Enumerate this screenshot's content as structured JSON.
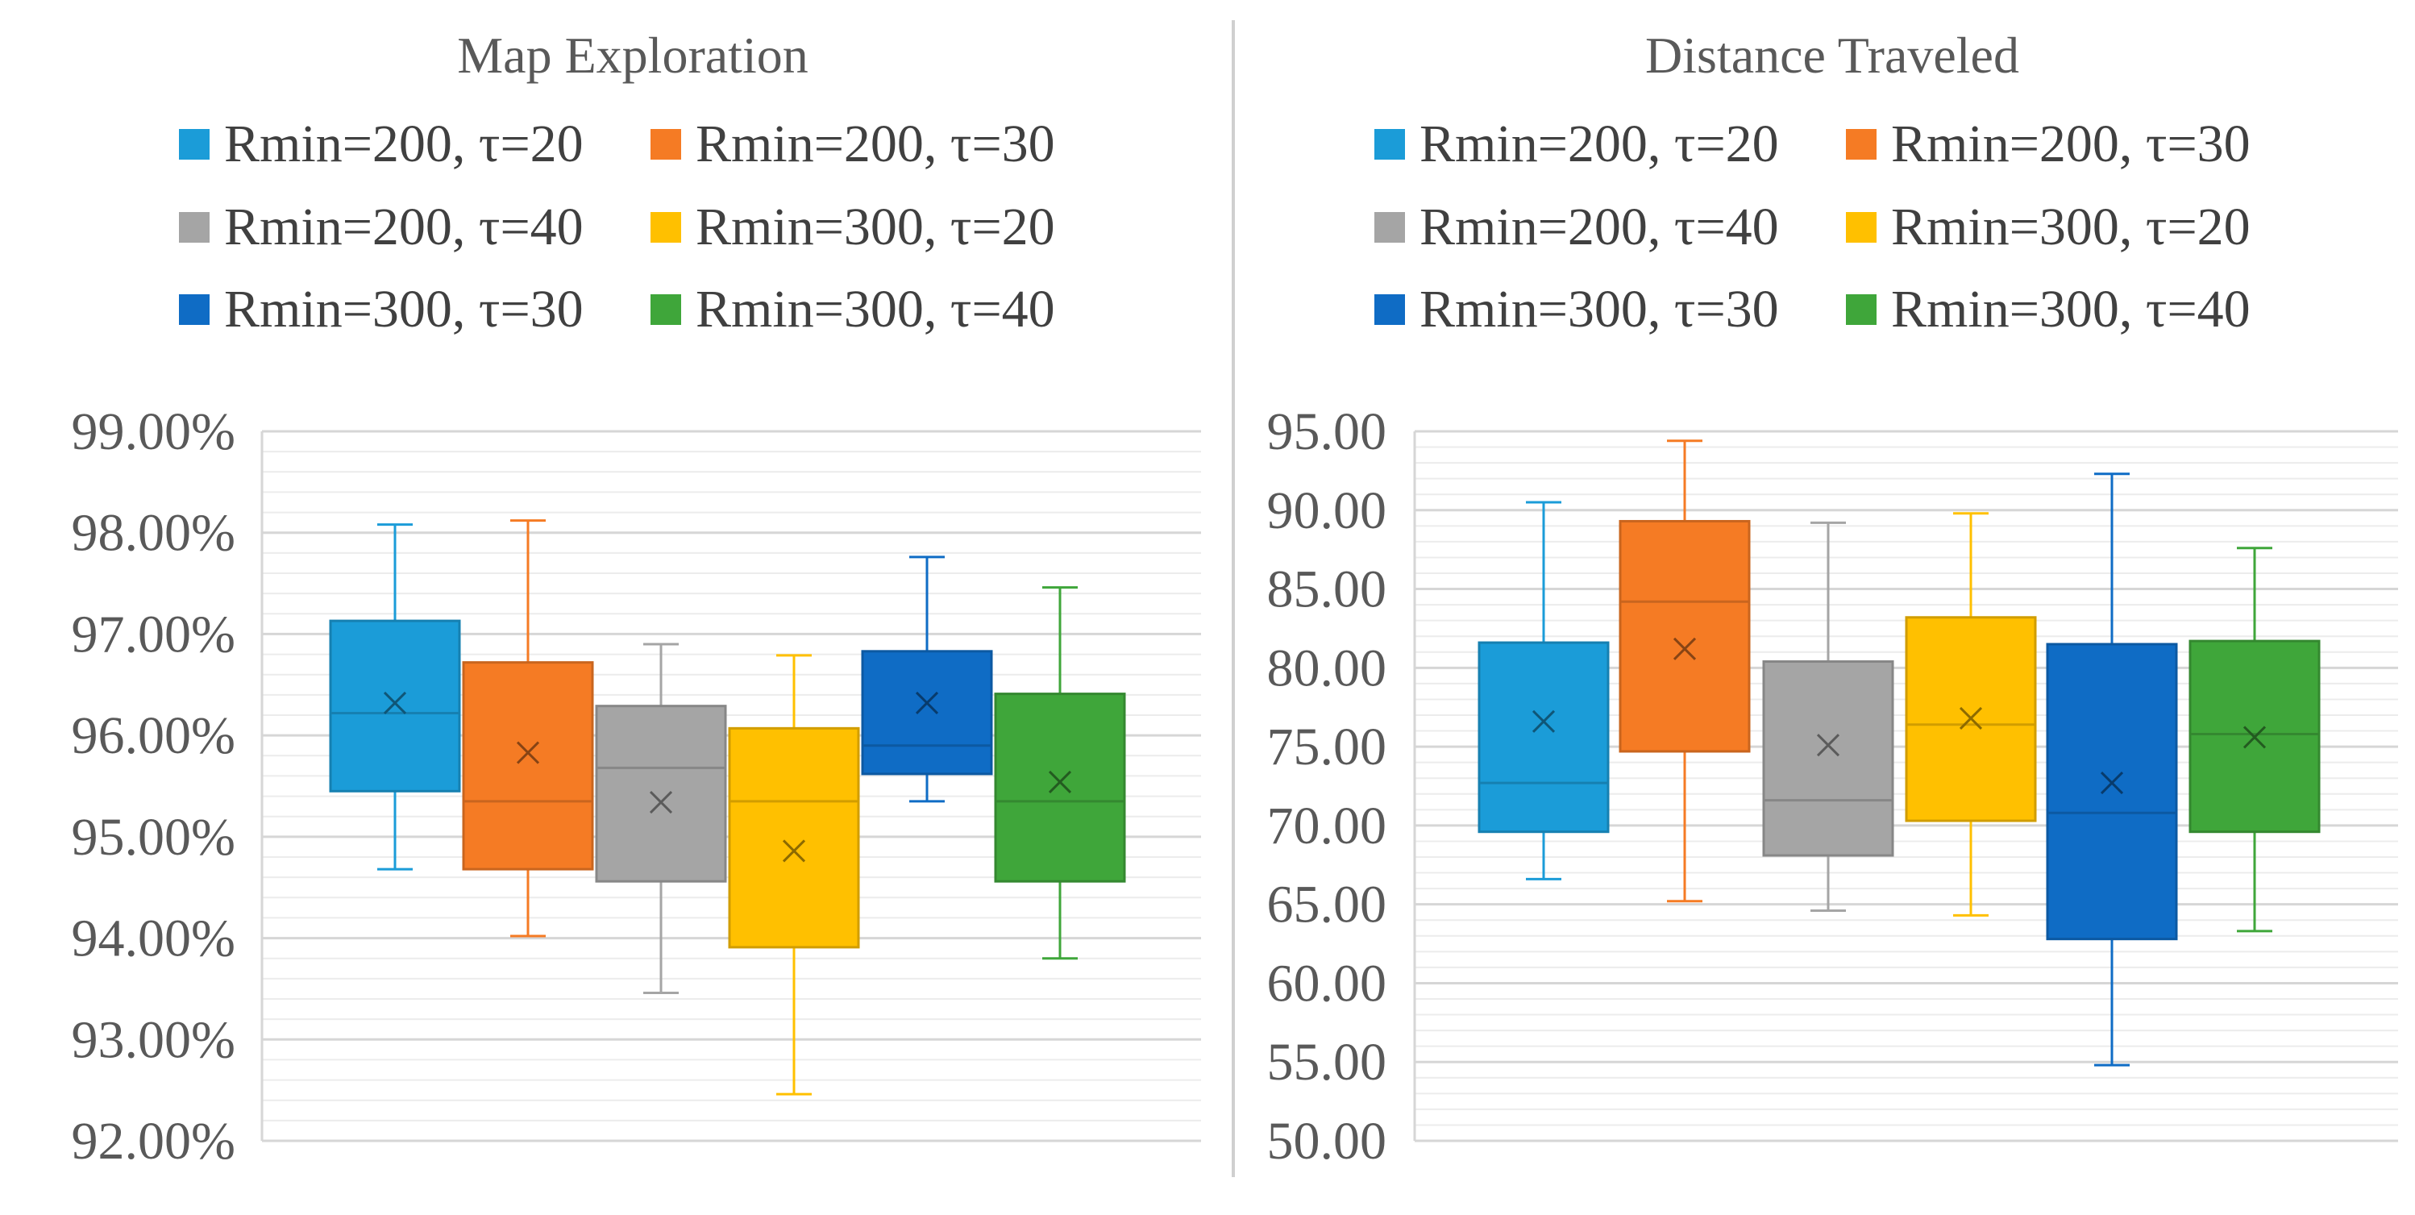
{
  "chart_data": [
    {
      "type": "box",
      "title": "Map Exploration",
      "xlabel": "",
      "ylabel": "",
      "ylim": [
        92,
        99
      ],
      "y_ticks": [
        "99.00%",
        "98.00%",
        "97.00%",
        "96.00%",
        "95.00%",
        "94.00%",
        "93.00%",
        "92.00%"
      ],
      "y_tick_values": [
        99,
        98,
        97,
        96,
        95,
        94,
        93,
        92
      ],
      "grid": true,
      "legend_position": "top",
      "legend": [
        "Rmin=200, τ=20",
        "Rmin=200, τ=30",
        "Rmin=200, τ=40",
        "Rmin=300, τ=20",
        "Rmin=300, τ=30",
        "Rmin=300, τ=40"
      ],
      "series": [
        {
          "name": "Rmin=200, τ=20",
          "color": "#1b9cd8",
          "min": 94.68,
          "q1": 95.45,
          "median": 96.22,
          "q3": 97.13,
          "max": 98.08,
          "mean": 96.32
        },
        {
          "name": "Rmin=200, τ=30",
          "color": "#f57b24",
          "min": 94.02,
          "q1": 94.68,
          "median": 95.35,
          "q3": 96.72,
          "max": 98.12,
          "mean": 95.83
        },
        {
          "name": "Rmin=200, τ=40",
          "color": "#a5a5a5",
          "min": 93.46,
          "q1": 94.56,
          "median": 95.68,
          "q3": 96.29,
          "max": 96.9,
          "mean": 95.34
        },
        {
          "name": "Rmin=300, τ=20",
          "color": "#ffc000",
          "min": 92.46,
          "q1": 93.91,
          "median": 95.35,
          "q3": 96.07,
          "max": 96.79,
          "mean": 94.86
        },
        {
          "name": "Rmin=300, τ=30",
          "color": "#0f6cc5",
          "min": 95.35,
          "q1": 95.62,
          "median": 95.9,
          "q3": 96.83,
          "max": 97.76,
          "mean": 96.32
        },
        {
          "name": "Rmin=300, τ=40",
          "color": "#3fa63a",
          "min": 93.8,
          "q1": 94.56,
          "median": 95.35,
          "q3": 96.41,
          "max": 97.46,
          "mean": 95.54
        }
      ]
    },
    {
      "type": "box",
      "title": "Distance Traveled",
      "xlabel": "",
      "ylabel": "",
      "ylim": [
        50,
        95
      ],
      "y_ticks": [
        "95.00",
        "90.00",
        "85.00",
        "80.00",
        "75.00",
        "70.00",
        "65.00",
        "60.00",
        "55.00",
        "50.00"
      ],
      "y_tick_values": [
        95,
        90,
        85,
        80,
        75,
        70,
        65,
        60,
        55,
        50
      ],
      "grid": true,
      "legend_position": "top",
      "legend": [
        "Rmin=200, τ=20",
        "Rmin=200, τ=30",
        "Rmin=200, τ=40",
        "Rmin=300, τ=20",
        "Rmin=300, τ=30",
        "Rmin=300, τ=40"
      ],
      "series": [
        {
          "name": "Rmin=200, τ=20",
          "color": "#1b9cd8",
          "min": 66.6,
          "q1": 69.6,
          "median": 72.7,
          "q3": 81.6,
          "max": 90.5,
          "mean": 76.6
        },
        {
          "name": "Rmin=200, τ=30",
          "color": "#f57b24",
          "min": 65.2,
          "q1": 74.7,
          "median": 84.2,
          "q3": 89.3,
          "max": 94.4,
          "mean": 81.2
        },
        {
          "name": "Rmin=200, τ=40",
          "color": "#a5a5a5",
          "min": 64.6,
          "q1": 68.1,
          "median": 71.6,
          "q3": 80.4,
          "max": 89.2,
          "mean": 75.1
        },
        {
          "name": "Rmin=300, τ=20",
          "color": "#ffc000",
          "min": 64.3,
          "q1": 70.3,
          "median": 76.4,
          "q3": 83.2,
          "max": 89.8,
          "mean": 76.8
        },
        {
          "name": "Rmin=300, τ=30",
          "color": "#0f6cc5",
          "min": 54.8,
          "q1": 62.8,
          "median": 70.8,
          "q3": 81.5,
          "max": 92.3,
          "mean": 72.7
        },
        {
          "name": "Rmin=300, τ=40",
          "color": "#3fa63a",
          "min": 63.3,
          "q1": 69.6,
          "median": 75.8,
          "q3": 81.7,
          "max": 87.6,
          "mean": 75.6
        }
      ]
    }
  ]
}
